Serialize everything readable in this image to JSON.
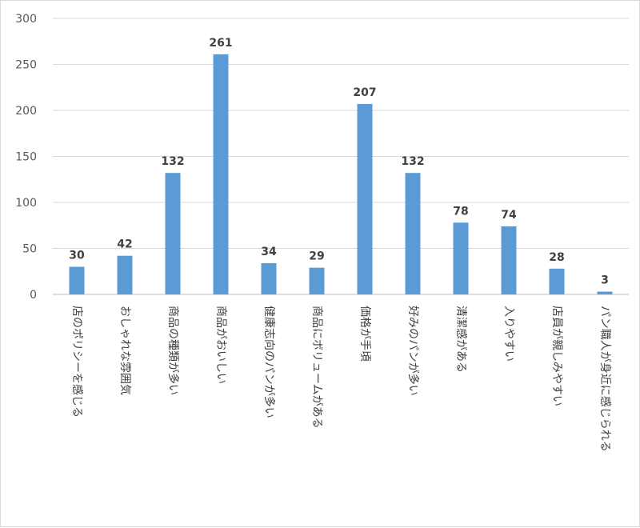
{
  "chart_data": {
    "type": "bar",
    "categories": [
      "店のポリシーを感じる",
      "おしゃれな雰囲気",
      "商品の種類が多い",
      "商品がおいしい",
      "健康志向のパンが多い",
      "商品にボリュームがある",
      "価格が手頃",
      "好みのパンが多い",
      "清潔感がある",
      "入りやすい",
      "店員が親しみやすい",
      "パン職人が身近に感じられる"
    ],
    "values": [
      30,
      42,
      132,
      261,
      34,
      29,
      207,
      132,
      78,
      74,
      28,
      3
    ],
    "data_labels": [
      "30",
      "42",
      "132",
      "261",
      "34",
      "29",
      "207",
      "132",
      "78",
      "74",
      "28",
      "3"
    ],
    "ylim": [
      0,
      300
    ],
    "yticks": [
      "0",
      "50",
      "100",
      "150",
      "200",
      "250",
      "300"
    ],
    "grid": true,
    "legend": "none",
    "bar_color": "#5b9bd5",
    "grid_color": "#d9d9d9",
    "title": "",
    "xlabel": "",
    "ylabel": ""
  }
}
